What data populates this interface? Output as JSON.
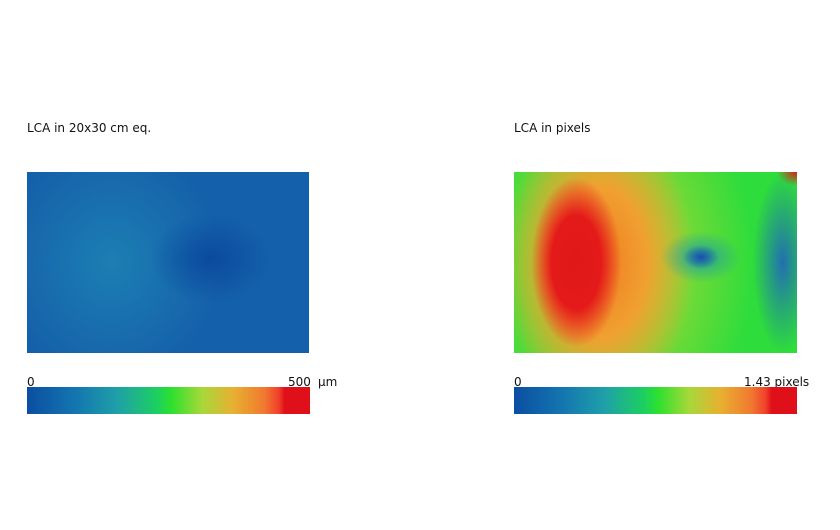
{
  "panels": [
    {
      "title": "LCA in 20x30 cm eq.",
      "scale": {
        "min": "0",
        "max": "500",
        "unit": "µm"
      }
    },
    {
      "title": "LCA in pixels",
      "scale": {
        "min": "0",
        "max": "1.43 pixels"
      }
    }
  ]
}
